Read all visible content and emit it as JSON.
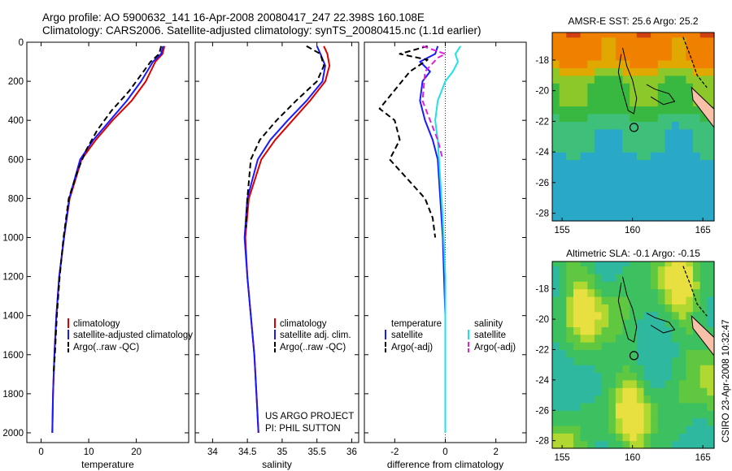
{
  "header": {
    "line1": "Argo profile: AO 5900632_141 16-Apr-2008 20080417_247 22.398S 160.108E",
    "line2": "Climatology: CARS2006. Satellite-adjusted climatology: synTS_20080415.nc (1.1d earlier)"
  },
  "credit": "CSIRO 23-Apr-2008 10:32:47",
  "project": {
    "line1": "US ARGO PROJECT",
    "line2": "PI: PHIL SUTTON"
  },
  "colors": {
    "climatology": "#dd0000",
    "satellite": "#1a1aff",
    "argo": "#000000",
    "temp_sat": "#1a1aff",
    "sal_sat": "#22e0e8",
    "sal_argo": "#e020e0"
  },
  "chart_data": [
    {
      "type": "line",
      "xlabel": "temperature",
      "xticks": [
        "0",
        "10",
        "20"
      ],
      "yticks": [
        "0",
        "200",
        "400",
        "600",
        "800",
        "1000",
        "1200",
        "1400",
        "1600",
        "1800",
        "2000"
      ],
      "xlim": [
        -3,
        31
      ],
      "ylim": [
        0,
        2050
      ],
      "y_reversed": true,
      "legend": [
        "climatology",
        "satellite-adjusted climatology",
        "Argo(..raw -QC)"
      ],
      "series": [
        {
          "name": "climatology",
          "color": "#dd0000",
          "style": "solid",
          "x": [
            25.9,
            25.5,
            24.0,
            22.0,
            19.0,
            15.0,
            11.5,
            8.5,
            6.0,
            4.8,
            3.8,
            3.2,
            2.8,
            2.5,
            2.35
          ],
          "y": [
            20,
            60,
            100,
            200,
            300,
            400,
            500,
            600,
            800,
            1000,
            1200,
            1400,
            1600,
            1800,
            2000
          ]
        },
        {
          "name": "satellite-adjusted climatology",
          "color": "#1a1aff",
          "style": "solid",
          "x": [
            25.6,
            25.2,
            23.5,
            21.0,
            18.0,
            14.5,
            11.0,
            8.2,
            5.9,
            4.8,
            3.8,
            3.2,
            2.8,
            2.5,
            2.35
          ],
          "y": [
            20,
            60,
            100,
            200,
            300,
            400,
            500,
            600,
            800,
            1000,
            1200,
            1400,
            1600,
            1800,
            2000
          ]
        },
        {
          "name": "Argo(..raw -QC)",
          "color": "#000000",
          "style": "dash",
          "x": [
            25.2,
            24.8,
            23.0,
            18.5,
            14.8,
            11.8,
            9.5,
            7.8,
            5.8,
            4.7,
            3.9,
            3.3,
            2.9,
            2.6
          ],
          "y": [
            20,
            60,
            100,
            250,
            350,
            450,
            550,
            650,
            800,
            1000,
            1200,
            1400,
            1600,
            1700
          ]
        }
      ]
    },
    {
      "type": "line",
      "xlabel": "salinity",
      "xticks": [
        "34",
        "34.5",
        "35",
        "35.5",
        "36"
      ],
      "yticks": [],
      "xlim": [
        33.75,
        36.1
      ],
      "ylim": [
        0,
        2050
      ],
      "y_reversed": true,
      "legend": [
        "climatology",
        "satellite adj. clim.",
        "Argo(..raw -QC)"
      ],
      "series": [
        {
          "name": "climatology",
          "color": "#dd0000",
          "style": "solid",
          "x": [
            35.6,
            35.65,
            35.68,
            35.62,
            35.4,
            35.15,
            34.9,
            34.7,
            34.52,
            34.47,
            34.5,
            34.55,
            34.6,
            34.63,
            34.66
          ],
          "y": [
            20,
            60,
            120,
            200,
            300,
            400,
            500,
            600,
            800,
            1000,
            1200,
            1400,
            1600,
            1800,
            2000
          ]
        },
        {
          "name": "satellite adj. clim.",
          "color": "#1a1aff",
          "style": "solid",
          "x": [
            35.5,
            35.55,
            35.62,
            35.58,
            35.35,
            35.08,
            34.83,
            34.65,
            34.5,
            34.46,
            34.5,
            34.55,
            34.6,
            34.63,
            34.66
          ],
          "y": [
            20,
            60,
            120,
            200,
            300,
            400,
            500,
            600,
            800,
            1000,
            1200,
            1400,
            1600,
            1800,
            2000
          ]
        },
        {
          "name": "Argo(..raw -QC)",
          "color": "#000000",
          "style": "dash",
          "x": [
            35.35,
            35.55,
            35.6,
            35.5,
            35.2,
            34.92,
            34.68,
            34.55,
            34.5,
            34.48
          ],
          "y": [
            20,
            60,
            120,
            200,
            300,
            400,
            500,
            600,
            800,
            950
          ]
        }
      ]
    },
    {
      "type": "line",
      "xlabel": "difference from climatology",
      "xticks": [
        "-2",
        "0",
        "2"
      ],
      "yticks": [],
      "xlim": [
        -3.2,
        3.2
      ],
      "ylim": [
        0,
        2050
      ],
      "y_reversed": true,
      "zero_line": 0,
      "legend_title_temp": "temperature",
      "legend_title_sal": "salinity",
      "legend": [
        "satellite",
        "Argo(-adj)",
        "satellite",
        "Argo(-adj)"
      ],
      "series": [
        {
          "name": "satellite",
          "group": "temperature",
          "color": "#1a1aff",
          "style": "solid",
          "x": [
            -0.3,
            -0.4,
            -1.0,
            -0.6,
            -0.9,
            -1.0,
            -0.8,
            -0.5,
            -0.3,
            -0.2,
            -0.1,
            -0.05,
            0,
            0,
            0
          ],
          "y": [
            20,
            60,
            100,
            150,
            200,
            300,
            400,
            500,
            600,
            800,
            1000,
            1200,
            1400,
            1700,
            1800
          ]
        },
        {
          "name": "Argo(-adj)",
          "group": "temperature",
          "color": "#000000",
          "style": "dash",
          "x": [
            -0.7,
            -1.8,
            -0.7,
            -1.4,
            -2.6,
            -2.0,
            -1.8,
            -2.2,
            -1.5,
            -0.8,
            -0.5,
            -0.4
          ],
          "y": [
            20,
            60,
            90,
            150,
            340,
            400,
            500,
            600,
            700,
            800,
            900,
            1000
          ]
        },
        {
          "name": "satellite",
          "group": "salinity",
          "color": "#22e0e8",
          "style": "solid",
          "x": [
            0.6,
            0.4,
            0.5,
            0.3,
            0,
            -0.3,
            -0.4,
            -0.3,
            -0.2,
            -0.1,
            0,
            0,
            0
          ],
          "y": [
            20,
            60,
            100,
            150,
            200,
            300,
            400,
            500,
            700,
            900,
            1200,
            1600,
            2000
          ]
        },
        {
          "name": "Argo(-adj)",
          "group": "salinity",
          "color": "#e020e0",
          "style": "dash",
          "x": [
            -0.9,
            0,
            -0.3,
            -0.8,
            -0.9,
            -0.6,
            -0.3,
            -0.1
          ],
          "y": [
            20,
            60,
            80,
            150,
            300,
            400,
            500,
            600
          ]
        }
      ]
    },
    {
      "type": "heatmap",
      "title": "AMSR-E SST: 25.6 Argo: 25.2",
      "xticks": [
        "155",
        "160",
        "165"
      ],
      "yticks": [
        "-18",
        "-20",
        "-22",
        "-24",
        "-26",
        "-28"
      ],
      "xlim": [
        154.3,
        165.8
      ],
      "ylim": [
        -28.5,
        -16.2
      ],
      "profile_position": [
        160.108,
        -22.398
      ]
    },
    {
      "type": "heatmap",
      "title": "Altimetric SLA: -0.1 Argo: -0.15",
      "xticks": [
        "155",
        "160",
        "165"
      ],
      "yticks": [
        "-18",
        "-20",
        "-22",
        "-24",
        "-26",
        "-28"
      ],
      "xlim": [
        154.3,
        165.8
      ],
      "ylim": [
        -28.5,
        -16.2
      ],
      "profile_position": [
        160.108,
        -22.398
      ]
    }
  ]
}
